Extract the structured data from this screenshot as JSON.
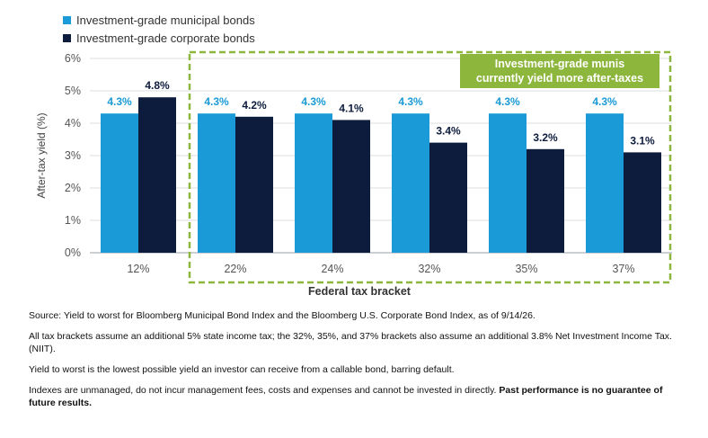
{
  "chart_data": {
    "type": "bar",
    "xlabel": "Federal tax bracket",
    "ylabel": "After-tax yield (%)",
    "ylim": [
      0,
      6
    ],
    "yticks": [
      "0%",
      "1%",
      "2%",
      "3%",
      "4%",
      "5%",
      "6%"
    ],
    "categories": [
      "12%",
      "22%",
      "24%",
      "32%",
      "35%",
      "37%"
    ],
    "series": [
      {
        "name": "Investment-grade municipal bonds",
        "values": [
          4.3,
          4.3,
          4.3,
          4.3,
          4.3,
          4.3
        ],
        "labels": [
          "4.3%",
          "4.3%",
          "4.3%",
          "4.3%",
          "4.3%",
          "4.3%"
        ],
        "color": "#1a9ad6"
      },
      {
        "name": "Investment-grade corporate bonds",
        "values": [
          4.8,
          4.2,
          4.1,
          3.4,
          3.2,
          3.1
        ],
        "labels": [
          "4.8%",
          "4.2%",
          "4.1%",
          "3.4%",
          "3.2%",
          "3.1%"
        ],
        "color": "#0d1c3d"
      }
    ],
    "grid": true,
    "legend": "top-left",
    "annotation": {
      "line1": "Investment-grade munis",
      "line2": "currently yield more after-taxes",
      "color": "#8db63c",
      "highlight_categories": [
        "22%",
        "37%"
      ]
    }
  },
  "notes": {
    "source": "Source: Yield to worst for Bloomberg Municipal Bond Index and the Bloomberg U.S. Corporate Bond Index, as of 9/14/26.",
    "brackets": "All tax brackets assume an additional 5% state income tax; the 32%, 35%, and 37% brackets also assume an additional 3.8% Net Investment Income Tax. (NIIT).",
    "ytw": "Yield to worst is the lowest possible yield an investor can receive from a callable bond, barring default.",
    "indexes": "Indexes are unmanaged, do not incur management fees, costs and expenses and cannot be invested in directly.",
    "disclaimer": "Past performance is no guarantee of future results."
  }
}
